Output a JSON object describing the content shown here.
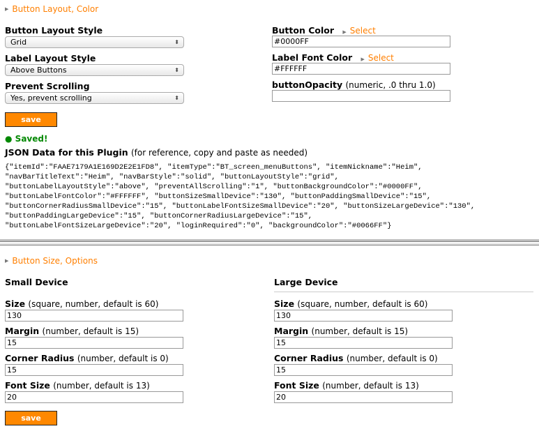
{
  "section1": {
    "title": "Button Layout, Color"
  },
  "left": [
    {
      "label": "Button Layout Style",
      "value": "Grid"
    },
    {
      "label": "Label Layout Style",
      "value": "Above Buttons"
    },
    {
      "label": "Prevent Scrolling",
      "value": "Yes, prevent scrolling"
    }
  ],
  "right": {
    "button_color": {
      "label": "Button Color",
      "link": "Select",
      "value": "#0000FF"
    },
    "label_font_color": {
      "label": "Label Font Color",
      "link": "Select",
      "value": "#FFFFFF"
    },
    "opacity": {
      "label": "buttonOpacity",
      "hint": "(numeric, .0 thru 1.0)",
      "value": ""
    }
  },
  "save_label": "save",
  "status": "Saved!",
  "json_heading": {
    "title": "JSON Data for this Plugin",
    "hint": "(for reference, copy and paste as needed)"
  },
  "json_lines": [
    "{\"itemId\":\"FAAE7179A1E169D2E2E1FD8\", \"itemType\":\"BT_screen_menuButtons\", \"itemNickname\":\"Heim\",",
    "\"navBarTitleText\":\"Heim\", \"navBarStyle\":\"solid\", \"buttonLayoutStyle\":\"grid\",",
    "\"buttonLabelLayoutStyle\":\"above\", \"preventAllScrolling\":\"1\", \"buttonBackgroundColor\":\"#0000FF\",",
    "\"buttonLabelFontColor\":\"#FFFFFF\", \"buttonSizeSmallDevice\":\"130\", \"buttonPaddingSmallDevice\":\"15\",",
    "\"buttonCornerRadiusSmallDevice\":\"15\", \"buttonLabelFontSizeSmallDevice\":\"20\", \"buttonSizeLargeDevice\":\"130\",",
    "\"buttonPaddingLargeDevice\":\"15\", \"buttonCornerRadiusLargeDevice\":\"15\",",
    "\"buttonLabelFontSizeLargeDevice\":\"20\", \"loginRequired\":\"0\", \"backgroundColor\":\"#0066FF\"}"
  ],
  "section2": {
    "title": "Button Size, Options",
    "small_heading": "Small Device",
    "large_heading": "Large Device"
  },
  "small": [
    {
      "label": "Size",
      "hint": "(square, number, default is 60)",
      "value": "130"
    },
    {
      "label": "Margin",
      "hint": "(number, default is 15)",
      "value": "15"
    },
    {
      "label": "Corner Radius",
      "hint": "(number, default is 0)",
      "value": "15"
    },
    {
      "label": "Font Size",
      "hint": "(number, default is 13)",
      "value": "20"
    }
  ],
  "large": [
    {
      "label": "Size",
      "hint": "(square, number, default is 60)",
      "value": "130"
    },
    {
      "label": "Margin",
      "hint": "(number, default is 15)",
      "value": "15"
    },
    {
      "label": "Corner Radius",
      "hint": "(number, default is 0)",
      "value": "15"
    },
    {
      "label": "Font Size",
      "hint": "(number, default is 13)",
      "value": "20"
    }
  ],
  "colors": {
    "accent": "#FF8800",
    "saved": "#008800"
  }
}
